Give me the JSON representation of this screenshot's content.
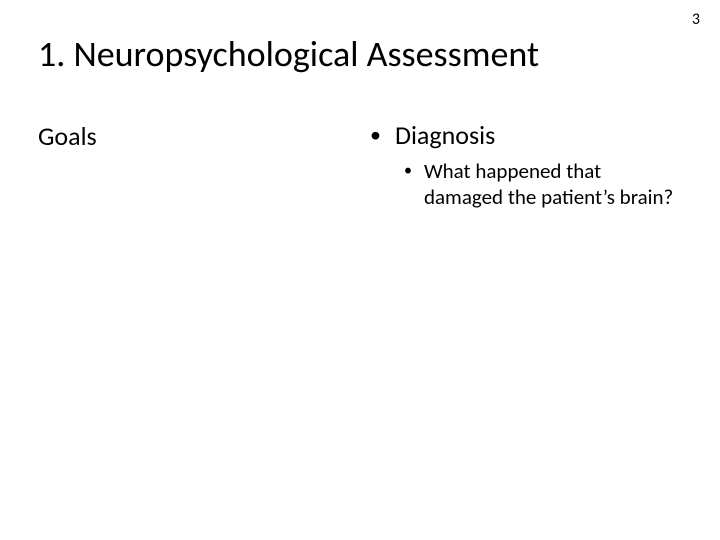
{
  "page_number": "3",
  "title": "1. Neuropsychological Assessment",
  "left": {
    "heading": "Goals"
  },
  "right": {
    "bullet1": {
      "marker": "•",
      "text": "Diagnosis"
    },
    "sub1": {
      "marker": "•",
      "text": "What happened that damaged the patient’s brain?"
    }
  },
  "style": {
    "background_color": "#ffffff",
    "text_color": "#000000",
    "title_fontsize": 36,
    "heading_fontsize": 26,
    "bullet_l1_fontsize": 26,
    "bullet_l2_fontsize": 21,
    "page_number_fontsize": 16,
    "font_family": "Calibri"
  }
}
